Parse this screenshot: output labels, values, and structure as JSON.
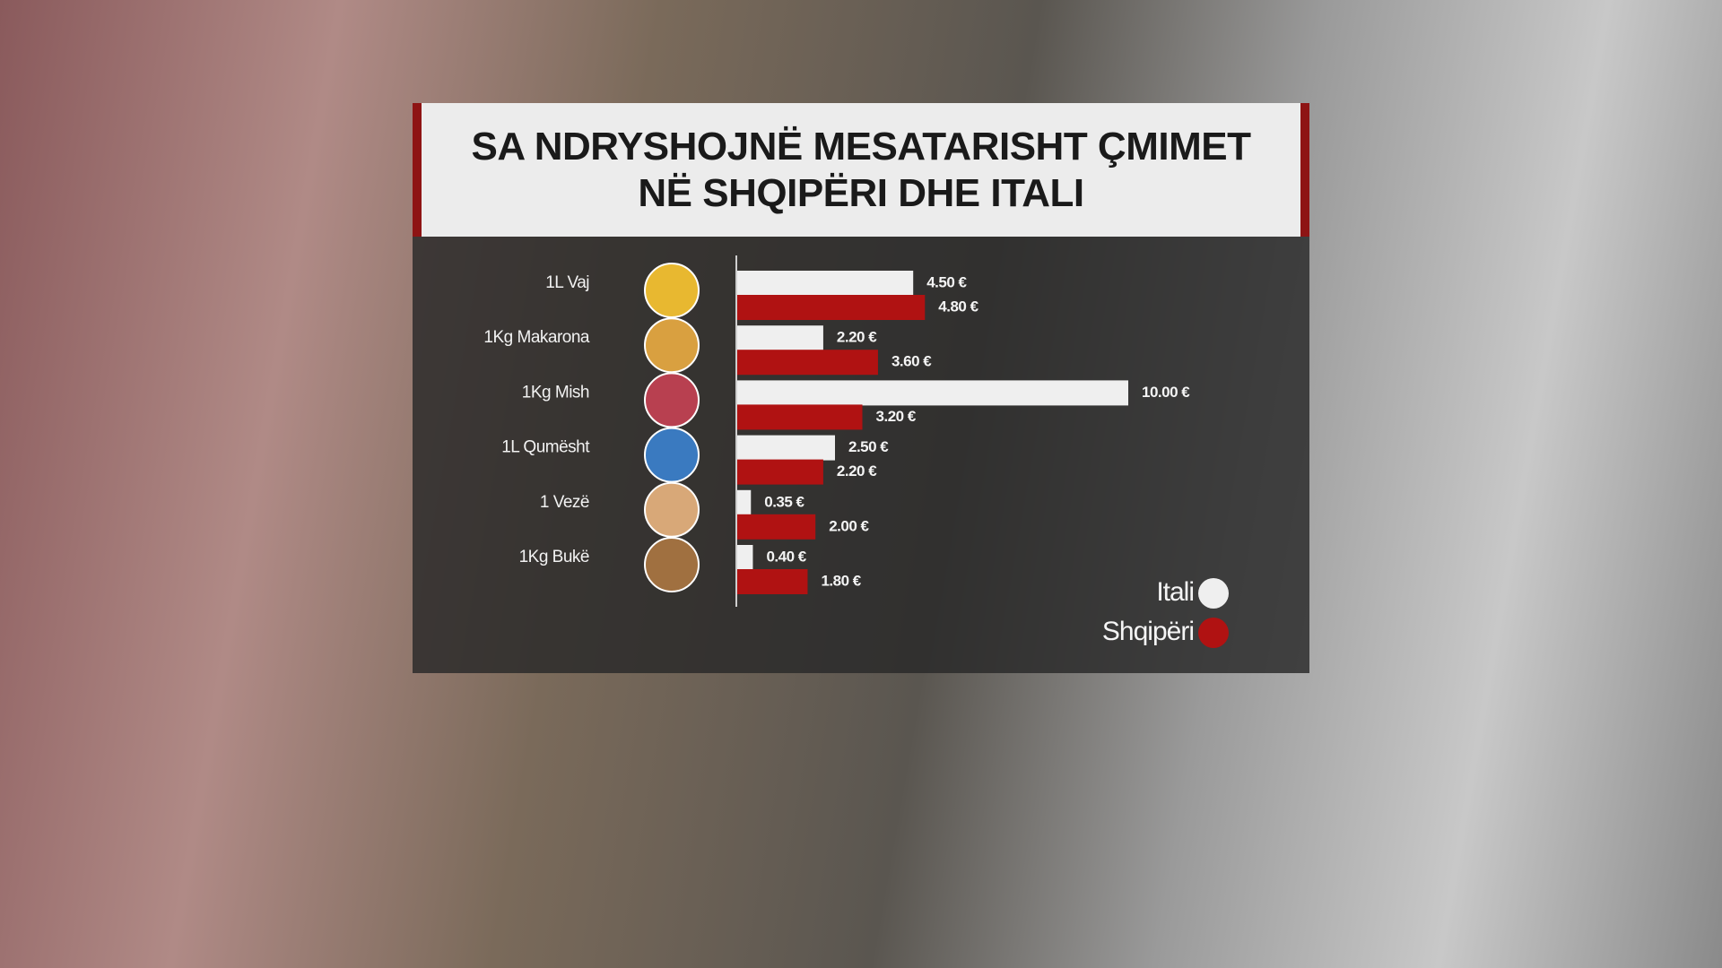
{
  "chart_data": {
    "type": "bar",
    "orientation": "horizontal",
    "title": "SA NDRYSHOJNË MESATARISHT ÇMIMET NË SHQIPËRI DHE ITALI",
    "categories": [
      "1L Vaj",
      "1Kg Makarona",
      "1Kg Mish",
      "1L Qumësht",
      "1 Vezë",
      "1Kg Bukë"
    ],
    "series": [
      {
        "name": "Itali",
        "color": "#efefef",
        "values": [
          4.5,
          2.2,
          10,
          2.5,
          0.35,
          0.4
        ],
        "value_labels": [
          "4.50 €",
          "2.20 €",
          "10.00 €",
          "2.50 €",
          "0.35 €",
          "0.40 €"
        ]
      },
      {
        "name": "Shqipëri",
        "color": "#b01212",
        "values": [
          4.8,
          3.6,
          3.2,
          2.2,
          2.0,
          1.8
        ],
        "value_labels": [
          "4.80 €",
          "3.60 €",
          "3.20 €",
          "2.20 €",
          "2.00 €",
          "1.80 €"
        ]
      }
    ]
  }
}
